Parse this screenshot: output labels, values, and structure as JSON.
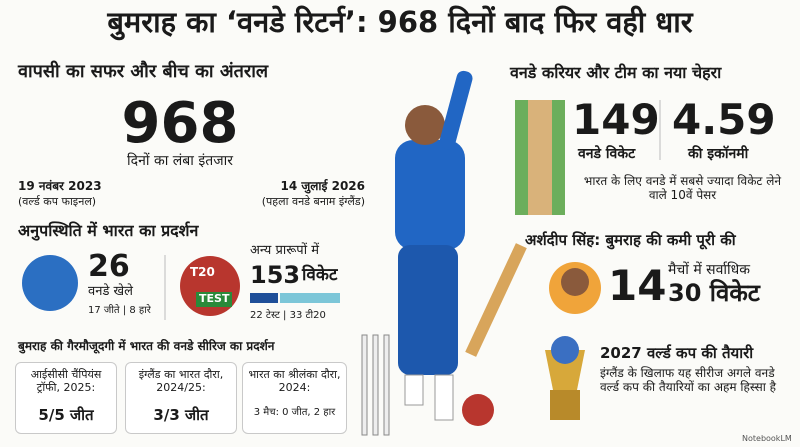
{
  "header": {
    "title": "बुमराह का ‘वनडे रिटर्न’: 968 दिनों बाद फिर वही धार"
  },
  "comeback": {
    "heading": "वापसी का सफर और बीच का अंतराल",
    "days": 968,
    "days_caption": "दिनों का लंबा इंतजार",
    "start_date": "19 नवंबर 2023",
    "start_note": "(वर्ल्ड कप फाइनल)",
    "end_date": "14 जुलाई 2026",
    "end_note": "(पहला वनडे बनाम इंग्लैंड)"
  },
  "absence": {
    "heading": "अनुपस्थिति में भारत का प्रदर्शन",
    "odis": 26,
    "odis_label": "वनडे खेले",
    "odis_record": "17 जीते | 8 हारे",
    "badge_t20": "T20",
    "badge_test": "TEST",
    "other_formats": "अन्य प्रारूपों में",
    "wickets": 153,
    "wickets_label": "विकेट",
    "wickets_split": "22 टेस्ट | 33 टी20"
  },
  "series": {
    "heading": "बुमराह की गैरमौजूदगी में भारत की वनडे सीरिज का प्रदर्शन",
    "cards": [
      {
        "name": "आईसीसी चैंपियंस ट्रॉफी, 2025:",
        "result": "5/5 जीत"
      },
      {
        "name": "इंग्लैंड का भारत दौरा, 2024/25:",
        "result": "3/3 जीत"
      },
      {
        "name": "भारत का श्रीलंका दौरा, 2024:",
        "result": "3 मैच: 0 जीत, 2 हार"
      }
    ]
  },
  "career": {
    "heading": "वनडे करियर और टीम का नया चेहरा",
    "wickets": 149,
    "wickets_label": "वनडे विकेट",
    "economy": 4.59,
    "economy_label": "की इकॉनमी",
    "note": "भारत के लिए वनडे में सबसे ज्यादा विकेट लेने वाले 10वें पेसर"
  },
  "arshdeep": {
    "heading": "अर्शदीप सिंह: बुमराह की कमी पूरी की",
    "matches": 14,
    "matches_label": "मैचों में सर्वाधिक",
    "wickets": "30 विकेट"
  },
  "worldcup": {
    "heading": "2027 वर्ल्ड कप की तैयारी",
    "text": "इंग्लैंड के खिलाफ यह सीरीज अगले वनडे वर्ल्ड कप की तैयारियों का अहम हिस्सा है"
  },
  "footer": {
    "brand": "NotebookLM"
  }
}
